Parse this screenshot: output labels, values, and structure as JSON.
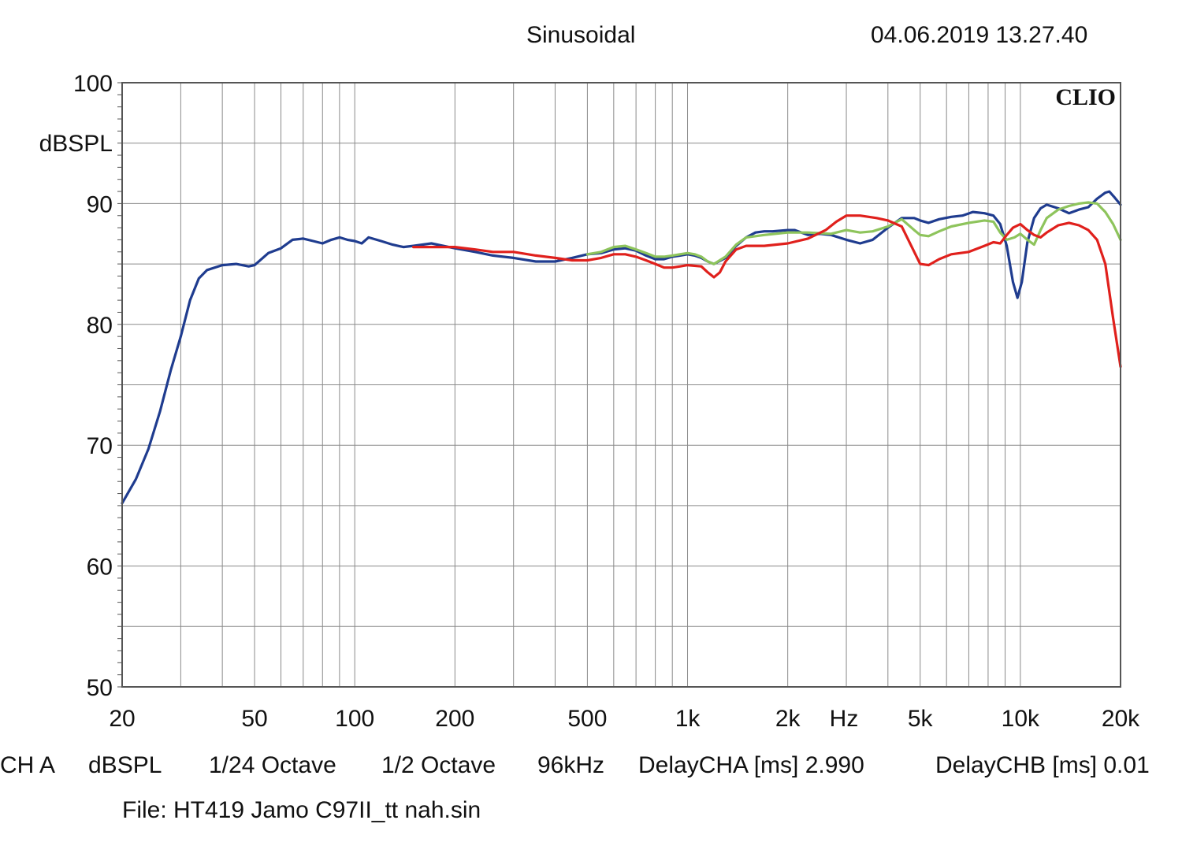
{
  "header": {
    "title": "Sinusoidal",
    "timestamp": "04.06.2019 13.27.40"
  },
  "footer": {
    "channel": "CH A",
    "unit": "dBSPL",
    "resolution": "1/24 Octave",
    "smoothing": "1/2 Octave",
    "sample_rate": "96kHz",
    "delay_a": "DelayCHA [ms] 2.990",
    "delay_b": "DelayCHB [ms] 0.01",
    "file": "File: HT419 Jamo C97II_tt nah.sin"
  },
  "chart_data": {
    "type": "line",
    "title": "Sinusoidal",
    "xlabel": "Hz",
    "ylabel": "dBSPL",
    "xscale": "log",
    "xlim": [
      20,
      20000
    ],
    "ylim": [
      50,
      100
    ],
    "grid": true,
    "brand": "CLIO",
    "y_ticks": [
      {
        "value": 100,
        "label": "100"
      },
      {
        "value": 90,
        "label": "90"
      },
      {
        "value": 80,
        "label": "80"
      },
      {
        "value": 70,
        "label": "70"
      },
      {
        "value": 60,
        "label": "60"
      },
      {
        "value": 50,
        "label": "50"
      }
    ],
    "x_ticks": [
      {
        "value": 20,
        "label": "20"
      },
      {
        "value": 50,
        "label": "50"
      },
      {
        "value": 100,
        "label": "100"
      },
      {
        "value": 200,
        "label": "200"
      },
      {
        "value": 500,
        "label": "500"
      },
      {
        "value": 1000,
        "label": "1k"
      },
      {
        "value": 2000,
        "label": "2k"
      },
      {
        "value": 5000,
        "label": "5k"
      },
      {
        "value": 10000,
        "label": "10k"
      },
      {
        "value": 20000,
        "label": "20k"
      }
    ],
    "series": [
      {
        "name": "blue",
        "color": "#1f3c8f",
        "points": [
          [
            20,
            65.2
          ],
          [
            22,
            67.2
          ],
          [
            24,
            69.7
          ],
          [
            26,
            72.8
          ],
          [
            28,
            76.2
          ],
          [
            30,
            79.0
          ],
          [
            32,
            82.0
          ],
          [
            34,
            83.8
          ],
          [
            36,
            84.5
          ],
          [
            40,
            84.9
          ],
          [
            44,
            85.0
          ],
          [
            48,
            84.8
          ],
          [
            50,
            84.9
          ],
          [
            55,
            85.9
          ],
          [
            60,
            86.3
          ],
          [
            65,
            87.0
          ],
          [
            70,
            87.1
          ],
          [
            75,
            86.9
          ],
          [
            80,
            86.7
          ],
          [
            85,
            87.0
          ],
          [
            90,
            87.2
          ],
          [
            95,
            87.0
          ],
          [
            100,
            86.9
          ],
          [
            105,
            86.7
          ],
          [
            110,
            87.2
          ],
          [
            120,
            86.9
          ],
          [
            130,
            86.6
          ],
          [
            140,
            86.4
          ],
          [
            150,
            86.5
          ],
          [
            170,
            86.7
          ],
          [
            200,
            86.3
          ],
          [
            230,
            86.0
          ],
          [
            260,
            85.7
          ],
          [
            300,
            85.5
          ],
          [
            350,
            85.2
          ],
          [
            400,
            85.2
          ],
          [
            450,
            85.5
          ],
          [
            500,
            85.8
          ],
          [
            550,
            85.9
          ],
          [
            600,
            86.2
          ],
          [
            650,
            86.3
          ],
          [
            700,
            86.1
          ],
          [
            750,
            85.7
          ],
          [
            800,
            85.4
          ],
          [
            850,
            85.4
          ],
          [
            900,
            85.6
          ],
          [
            950,
            85.7
          ],
          [
            1000,
            85.8
          ],
          [
            1050,
            85.7
          ],
          [
            1100,
            85.5
          ],
          [
            1150,
            85.2
          ],
          [
            1200,
            85.0
          ],
          [
            1300,
            85.5
          ],
          [
            1400,
            86.5
          ],
          [
            1500,
            87.2
          ],
          [
            1600,
            87.6
          ],
          [
            1700,
            87.7
          ],
          [
            1800,
            87.7
          ],
          [
            2000,
            87.8
          ],
          [
            2100,
            87.8
          ],
          [
            2200,
            87.6
          ],
          [
            2300,
            87.4
          ],
          [
            2500,
            87.5
          ],
          [
            2700,
            87.4
          ],
          [
            3000,
            87.0
          ],
          [
            3300,
            86.7
          ],
          [
            3600,
            87.0
          ],
          [
            4000,
            88.0
          ],
          [
            4400,
            88.8
          ],
          [
            4800,
            88.8
          ],
          [
            5000,
            88.6
          ],
          [
            5300,
            88.4
          ],
          [
            5700,
            88.7
          ],
          [
            6200,
            88.9
          ],
          [
            6700,
            89.0
          ],
          [
            7200,
            89.3
          ],
          [
            7800,
            89.2
          ],
          [
            8300,
            89.0
          ],
          [
            8700,
            88.3
          ],
          [
            9100,
            86.5
          ],
          [
            9500,
            83.5
          ],
          [
            9800,
            82.2
          ],
          [
            10100,
            83.5
          ],
          [
            10500,
            86.8
          ],
          [
            11000,
            88.8
          ],
          [
            11500,
            89.6
          ],
          [
            12000,
            89.9
          ],
          [
            13000,
            89.6
          ],
          [
            14000,
            89.2
          ],
          [
            15000,
            89.5
          ],
          [
            16000,
            89.7
          ],
          [
            17000,
            90.4
          ],
          [
            18000,
            90.9
          ],
          [
            18500,
            91.0
          ],
          [
            19200,
            90.5
          ],
          [
            20000,
            89.9
          ]
        ]
      },
      {
        "name": "green",
        "color": "#8ec45c",
        "points": [
          [
            500,
            85.8
          ],
          [
            550,
            86.0
          ],
          [
            600,
            86.4
          ],
          [
            650,
            86.5
          ],
          [
            700,
            86.2
          ],
          [
            750,
            85.9
          ],
          [
            800,
            85.6
          ],
          [
            850,
            85.6
          ],
          [
            900,
            85.7
          ],
          [
            950,
            85.8
          ],
          [
            1000,
            85.9
          ],
          [
            1050,
            85.8
          ],
          [
            1100,
            85.6
          ],
          [
            1150,
            85.2
          ],
          [
            1200,
            85.0
          ],
          [
            1300,
            85.6
          ],
          [
            1400,
            86.6
          ],
          [
            1500,
            87.2
          ],
          [
            1700,
            87.4
          ],
          [
            2000,
            87.6
          ],
          [
            2300,
            87.6
          ],
          [
            2700,
            87.5
          ],
          [
            3000,
            87.8
          ],
          [
            3300,
            87.6
          ],
          [
            3600,
            87.7
          ],
          [
            4000,
            88.1
          ],
          [
            4400,
            88.7
          ],
          [
            4800,
            87.8
          ],
          [
            5000,
            87.4
          ],
          [
            5300,
            87.3
          ],
          [
            5700,
            87.7
          ],
          [
            6200,
            88.1
          ],
          [
            7000,
            88.4
          ],
          [
            7800,
            88.6
          ],
          [
            8300,
            88.5
          ],
          [
            8700,
            87.6
          ],
          [
            9100,
            87.0
          ],
          [
            9600,
            87.2
          ],
          [
            10000,
            87.5
          ],
          [
            10500,
            87.0
          ],
          [
            11000,
            86.6
          ],
          [
            11500,
            87.8
          ],
          [
            12000,
            88.8
          ],
          [
            13000,
            89.5
          ],
          [
            14000,
            89.8
          ],
          [
            15000,
            90.0
          ],
          [
            16000,
            90.1
          ],
          [
            17000,
            90.0
          ],
          [
            18000,
            89.3
          ],
          [
            19000,
            88.3
          ],
          [
            20000,
            87.0
          ]
        ]
      },
      {
        "name": "red",
        "color": "#e0201c",
        "points": [
          [
            150,
            86.4
          ],
          [
            170,
            86.4
          ],
          [
            200,
            86.4
          ],
          [
            230,
            86.2
          ],
          [
            260,
            86.0
          ],
          [
            300,
            86.0
          ],
          [
            350,
            85.7
          ],
          [
            400,
            85.5
          ],
          [
            450,
            85.3
          ],
          [
            500,
            85.3
          ],
          [
            550,
            85.5
          ],
          [
            600,
            85.8
          ],
          [
            650,
            85.8
          ],
          [
            700,
            85.6
          ],
          [
            750,
            85.3
          ],
          [
            800,
            85.0
          ],
          [
            850,
            84.7
          ],
          [
            900,
            84.7
          ],
          [
            950,
            84.8
          ],
          [
            1000,
            84.9
          ],
          [
            1100,
            84.8
          ],
          [
            1150,
            84.3
          ],
          [
            1200,
            83.9
          ],
          [
            1250,
            84.3
          ],
          [
            1300,
            85.2
          ],
          [
            1400,
            86.2
          ],
          [
            1500,
            86.5
          ],
          [
            1700,
            86.5
          ],
          [
            2000,
            86.7
          ],
          [
            2300,
            87.1
          ],
          [
            2600,
            87.8
          ],
          [
            2800,
            88.5
          ],
          [
            3000,
            89.0
          ],
          [
            3300,
            89.0
          ],
          [
            3700,
            88.8
          ],
          [
            4000,
            88.6
          ],
          [
            4400,
            88.1
          ],
          [
            4700,
            86.5
          ],
          [
            5000,
            85.0
          ],
          [
            5300,
            84.9
          ],
          [
            5700,
            85.4
          ],
          [
            6200,
            85.8
          ],
          [
            7000,
            86.0
          ],
          [
            7800,
            86.5
          ],
          [
            8300,
            86.8
          ],
          [
            8700,
            86.7
          ],
          [
            9100,
            87.4
          ],
          [
            9500,
            88.0
          ],
          [
            10000,
            88.3
          ],
          [
            10500,
            87.8
          ],
          [
            11000,
            87.4
          ],
          [
            11500,
            87.2
          ],
          [
            12000,
            87.6
          ],
          [
            13000,
            88.2
          ],
          [
            14000,
            88.4
          ],
          [
            15000,
            88.2
          ],
          [
            16000,
            87.8
          ],
          [
            17000,
            87.0
          ],
          [
            18000,
            85.0
          ],
          [
            19000,
            80.5
          ],
          [
            20000,
            76.5
          ]
        ]
      }
    ]
  }
}
